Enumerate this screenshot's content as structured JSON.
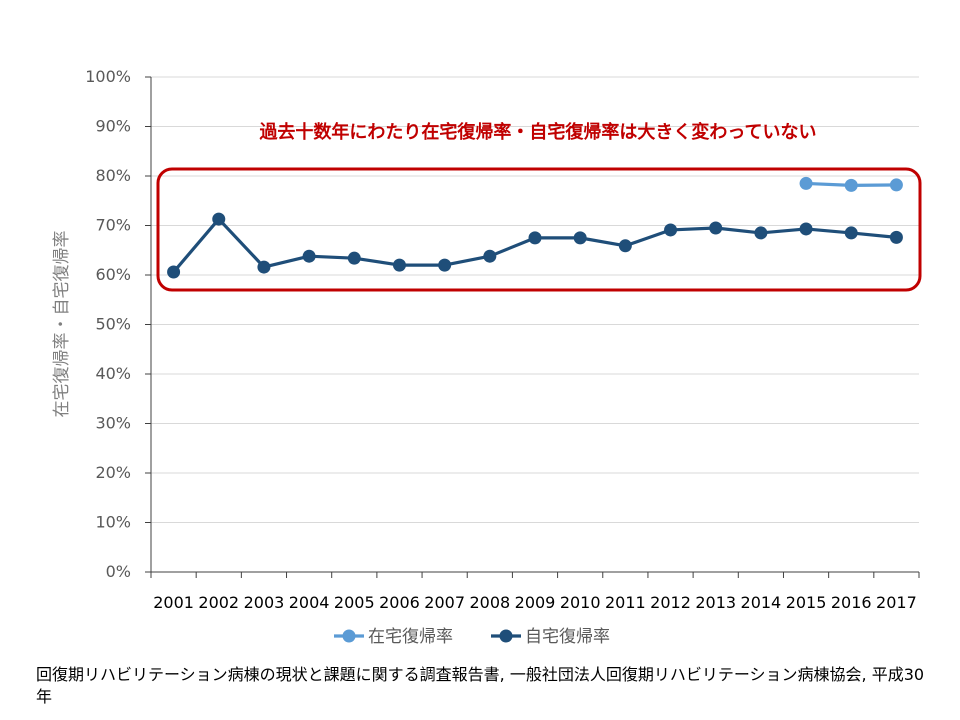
{
  "chart_data": {
    "type": "line",
    "categories": [
      "2001",
      "2002",
      "2003",
      "2004",
      "2005",
      "2006",
      "2007",
      "2008",
      "2009",
      "2010",
      "2011",
      "2012",
      "2013",
      "2014",
      "2015",
      "2016",
      "2017"
    ],
    "series": [
      {
        "name": "在宅復帰率",
        "color": "#5b9bd5",
        "values": [
          null,
          null,
          null,
          null,
          null,
          null,
          null,
          null,
          null,
          null,
          null,
          null,
          null,
          null,
          78.5,
          78.1,
          78.2
        ]
      },
      {
        "name": "自宅復帰率",
        "color": "#1f4e79",
        "values": [
          60.6,
          71.3,
          61.6,
          63.8,
          63.4,
          62.0,
          62.0,
          63.8,
          67.5,
          67.5,
          65.9,
          69.1,
          69.5,
          68.5,
          69.3,
          68.5,
          67.6
        ]
      }
    ],
    "ylim": [
      0,
      100
    ],
    "yticks": [
      "0%",
      "10%",
      "20%",
      "30%",
      "40%",
      "50%",
      "60%",
      "70%",
      "80%",
      "90%",
      "100%"
    ],
    "ylabel": "在宅復帰率・自宅復帰率",
    "xlabel": "",
    "annotation": "過去十数年にわたり在宅復帰率・自宅復帰率は大きく変わっていない",
    "annotation_color": "#c00000",
    "legend_position": "bottom"
  },
  "source": "回復期リハビリテーション病棟の現状と課題に関する調査報告書, 一般社団法人回復期リハビリテーション病棟協会, 平成30年"
}
